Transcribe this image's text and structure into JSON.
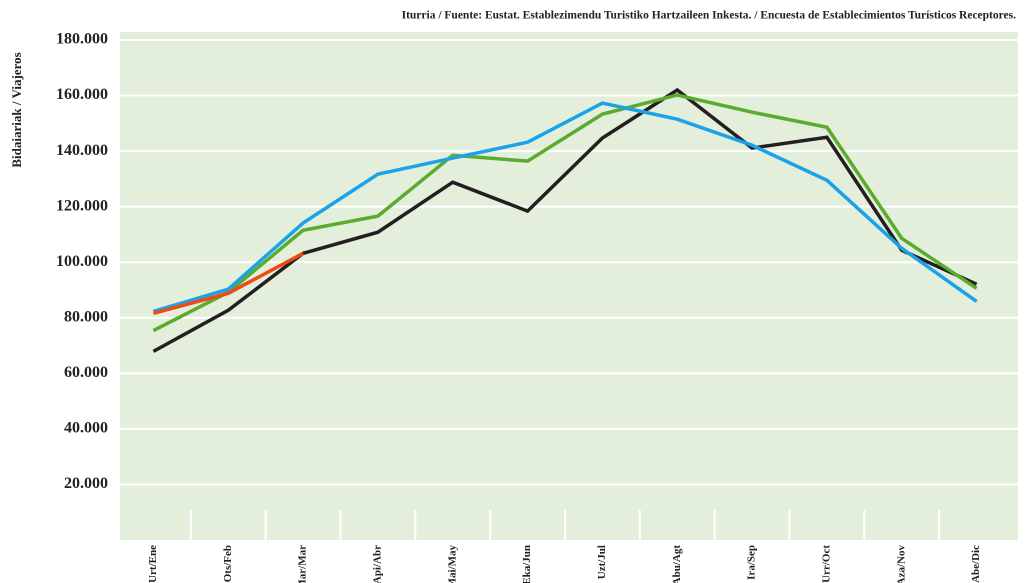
{
  "chart_data": {
    "type": "line",
    "subtitle": "Iturria / Fuente: Eustat. Establezimendu Turistiko Hartzaileen Inkesta. / Encuesta de Establecimientos Turísticos Receptores.",
    "y_label": "Bidaiariak / Viajeros",
    "categories": [
      "Urt/Ene",
      "Ots/Feb",
      "Mar/Mar",
      "Api/Abr",
      "Mai/May",
      "Eka/Jun",
      "Uzt/Jul",
      "Abu/Agt",
      "Ira/Sep",
      "Urr/Oct",
      "Aza/Nov",
      "Abe/Dic"
    ],
    "series": [
      {
        "color": "#231f20",
        "values": [
          67900,
          82700,
          103200,
          110800,
          128800,
          118400,
          144700,
          162000,
          141100,
          145000,
          104300,
          92100
        ]
      },
      {
        "color": "#5aac2f",
        "values": [
          75400,
          89200,
          111500,
          116600,
          138500,
          136400,
          153300,
          160200,
          154000,
          148600,
          108600,
          90600
        ]
      },
      {
        "color": "#1aa3e8",
        "values": [
          82300,
          90300,
          114100,
          131700,
          137500,
          143200,
          157300,
          151500,
          142100,
          129500,
          105000,
          85900
        ]
      },
      {
        "color": "#ee4a16",
        "values": [
          81600,
          88800,
          103200,
          null,
          null,
          null,
          null,
          null,
          null,
          null,
          null,
          null
        ]
      }
    ],
    "ylim": [
      0,
      180000
    ],
    "yticks": [
      {
        "value": 20000,
        "label": "20.000"
      },
      {
        "value": 40000,
        "label": "40.000"
      },
      {
        "value": 60000,
        "label": "60.000"
      },
      {
        "value": 80000,
        "label": "80.000"
      },
      {
        "value": 100000,
        "label": "100.000"
      },
      {
        "value": 120000,
        "label": "120.000"
      },
      {
        "value": 140000,
        "label": "140.000"
      },
      {
        "value": 160000,
        "label": "160.000"
      },
      {
        "value": 180000,
        "label": "180.000"
      }
    ],
    "grid": true,
    "background": "#e3eedb"
  }
}
